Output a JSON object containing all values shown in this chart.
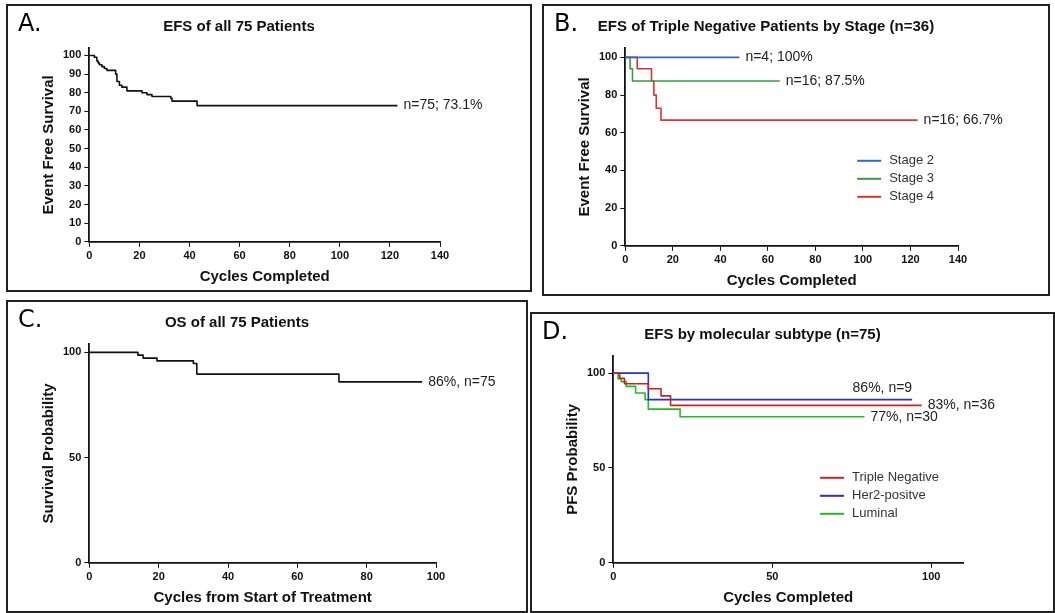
{
  "chart_data": [
    {
      "type": "step",
      "title": "EFS of all 75 Patients",
      "xlabel": "Cycles Completed",
      "ylabel": "Event Free Survival",
      "xlim": [
        0,
        140
      ],
      "xticks": [
        0,
        20,
        40,
        60,
        80,
        100,
        120,
        140
      ],
      "ylim": [
        0,
        104
      ],
      "yticks": [
        0,
        10,
        20,
        30,
        40,
        50,
        60,
        70,
        80,
        90,
        100
      ],
      "grid": false,
      "legend": false,
      "marker": "none",
      "annotations": [
        "A.",
        {
          "text": "n=75; 73.1%",
          "x": 123,
          "y": 73.1
        }
      ],
      "series": [
        {
          "color": "#111111",
          "x": [
            0,
            2,
            3,
            3.5,
            4,
            5,
            6,
            7,
            10.5,
            11,
            12,
            13,
            15,
            21,
            23,
            25,
            32.5,
            33,
            43,
            123
          ],
          "values": [
            100,
            99,
            97,
            96,
            95,
            94,
            93,
            92,
            90,
            86,
            84,
            83,
            81,
            80,
            79,
            78,
            77,
            75.5,
            73.1,
            73.1
          ]
        }
      ]
    },
    {
      "type": "step",
      "title": "EFS of Triple Negative Patients by Stage (n=36)",
      "xlabel": "Cycles Completed",
      "ylabel": "Event Free Survival",
      "xlim": [
        0,
        140
      ],
      "xticks": [
        0,
        20,
        40,
        60,
        80,
        100,
        120,
        140
      ],
      "ylim": [
        0,
        105
      ],
      "yticks": [
        0,
        20,
        40,
        60,
        80,
        100
      ],
      "grid": false,
      "legend": "bottom right",
      "marker": "none",
      "annotations": [
        "B.",
        {
          "text": "n=4; 100%",
          "x": 48,
          "y": 100
        },
        {
          "text": "n=16; 87.5%",
          "x": 65,
          "y": 87.5
        },
        {
          "text": "n=16; 66.7%",
          "x": 123,
          "y": 66.7
        }
      ],
      "series": [
        {
          "name": "Stage 2",
          "color": "#3366dd",
          "x": [
            0,
            48
          ],
          "values": [
            100,
            100
          ]
        },
        {
          "name": "Stage 3",
          "color": "#2f9e3f",
          "x": [
            0,
            2,
            3,
            65
          ],
          "values": [
            100,
            94,
            87.5,
            87.5
          ]
        },
        {
          "name": "Stage 4",
          "color": "#e03030",
          "x": [
            0,
            5,
            11,
            12,
            13,
            15,
            123
          ],
          "values": [
            100,
            94,
            87.5,
            80,
            73,
            66.7,
            66.7
          ]
        }
      ]
    },
    {
      "type": "step",
      "title": "OS of all 75 Patients",
      "xlabel": "Cycles from Start of Treatment",
      "ylabel": "Survival Probability",
      "xlim": [
        0,
        100
      ],
      "xticks": [
        0,
        20,
        40,
        60,
        80,
        100
      ],
      "ylim": [
        0,
        104
      ],
      "yticks": [
        0,
        50,
        100
      ],
      "grid": false,
      "legend": false,
      "marker": "none",
      "annotations": [
        "C.",
        {
          "text": "86%, n=75",
          "x": 96,
          "y": 86
        }
      ],
      "series": [
        {
          "color": "#111111",
          "x": [
            0,
            14,
            15.5,
            19.5,
            30,
            31,
            72,
            96
          ],
          "values": [
            100,
            98.7,
            97.3,
            96,
            94.7,
            89.7,
            86,
            86
          ]
        }
      ]
    },
    {
      "type": "step",
      "title": "EFS by molecular subtype (n=75)",
      "xlabel": "Cycles Completed",
      "ylabel": "PFS Probability",
      "xlim": [
        0,
        110
      ],
      "xticks": [
        0,
        50,
        100
      ],
      "ylim": [
        0,
        109
      ],
      "yticks": [
        0,
        50,
        100
      ],
      "grid": false,
      "legend": "bottom right",
      "marker": "none",
      "annotations": [
        "D.",
        {
          "text": "86%, n=9",
          "x": 94,
          "y": 86
        },
        {
          "text": "83%, n=36",
          "x": 97,
          "y": 83
        },
        {
          "text": "77%, n=30",
          "x": 79,
          "y": 77
        }
      ],
      "series": [
        {
          "name": "Triple Negative",
          "color": "#cc2222",
          "x": [
            0,
            2,
            3.5,
            11,
            15,
            18,
            97
          ],
          "values": [
            100,
            97.2,
            94.4,
            91.7,
            88,
            83,
            83
          ]
        },
        {
          "name": "Her2-positve",
          "color": "#2233cc",
          "x": [
            0,
            11,
            94
          ],
          "values": [
            100,
            86,
            86
          ]
        },
        {
          "name": "Luminal",
          "color": "#22bb22",
          "x": [
            0,
            1.5,
            2.5,
            4,
            7,
            10,
            11,
            21,
            79
          ],
          "values": [
            100,
            97,
            95.5,
            93,
            89.5,
            86,
            81,
            77,
            77
          ]
        }
      ]
    }
  ]
}
